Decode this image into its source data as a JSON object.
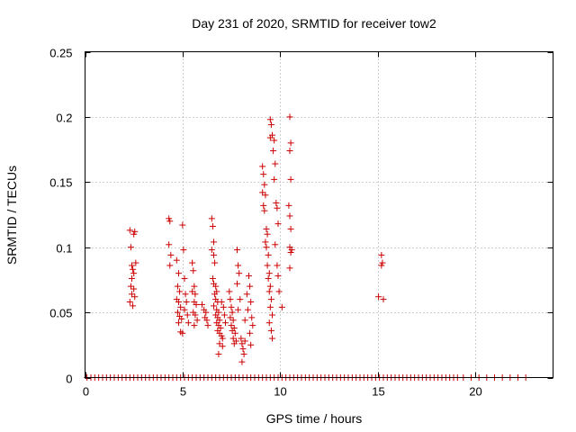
{
  "chart_data": {
    "type": "scatter",
    "title": "Day 231 of 2020, SRMTID for receiver tow2",
    "xlabel": "GPS time / hours",
    "ylabel": "SRMTID / TECUs",
    "xlim": [
      0,
      24
    ],
    "ylim": [
      0,
      0.25
    ],
    "xticks": [
      0,
      5,
      10,
      15,
      20
    ],
    "xtick_labels": [
      "0",
      "5",
      "10",
      "15",
      "20"
    ],
    "yticks": [
      0,
      0.05,
      0.1,
      0.15,
      0.2,
      0.25
    ],
    "ytick_labels": [
      "0",
      "0.05",
      "0.1",
      "0.15",
      "0.2",
      "0.25"
    ],
    "grid": true,
    "marker": "+",
    "color": "#cc0000",
    "series": [
      {
        "name": "SRMTID",
        "points": [
          [
            2.3,
            0.113
          ],
          [
            2.35,
            0.1
          ],
          [
            2.4,
            0.086
          ],
          [
            2.45,
            0.083
          ],
          [
            2.5,
            0.08
          ],
          [
            2.35,
            0.07
          ],
          [
            2.4,
            0.064
          ],
          [
            2.3,
            0.058
          ],
          [
            2.45,
            0.055
          ],
          [
            2.5,
            0.11
          ],
          [
            2.55,
            0.112
          ],
          [
            2.6,
            0.088
          ],
          [
            2.4,
            0.076
          ],
          [
            2.5,
            0.068
          ],
          [
            2.55,
            0.062
          ],
          [
            4.3,
            0.122
          ],
          [
            4.35,
            0.12
          ],
          [
            4.3,
            0.102
          ],
          [
            4.4,
            0.094
          ],
          [
            4.35,
            0.086
          ],
          [
            4.7,
            0.09
          ],
          [
            4.8,
            0.08
          ],
          [
            4.75,
            0.07
          ],
          [
            4.85,
            0.066
          ],
          [
            4.7,
            0.06
          ],
          [
            4.8,
            0.058
          ],
          [
            4.9,
            0.054
          ],
          [
            4.75,
            0.05
          ],
          [
            4.85,
            0.047
          ],
          [
            4.95,
            0.045
          ],
          [
            4.8,
            0.042
          ],
          [
            4.9,
            0.035
          ],
          [
            5.0,
            0.034
          ],
          [
            5.0,
            0.117
          ],
          [
            5.05,
            0.098
          ],
          [
            5.1,
            0.076
          ],
          [
            5.15,
            0.064
          ],
          [
            5.2,
            0.058
          ],
          [
            5.1,
            0.052
          ],
          [
            5.25,
            0.048
          ],
          [
            5.3,
            0.042
          ],
          [
            5.5,
            0.088
          ],
          [
            5.55,
            0.082
          ],
          [
            5.6,
            0.07
          ],
          [
            5.5,
            0.066
          ],
          [
            5.65,
            0.064
          ],
          [
            5.6,
            0.058
          ],
          [
            5.7,
            0.056
          ],
          [
            5.55,
            0.05
          ],
          [
            5.65,
            0.048
          ],
          [
            5.75,
            0.044
          ],
          [
            5.6,
            0.04
          ],
          [
            6.0,
            0.056
          ],
          [
            6.1,
            0.052
          ],
          [
            6.2,
            0.05
          ],
          [
            6.15,
            0.046
          ],
          [
            6.25,
            0.044
          ],
          [
            6.3,
            0.04
          ],
          [
            6.5,
            0.122
          ],
          [
            6.55,
            0.116
          ],
          [
            6.6,
            0.104
          ],
          [
            6.5,
            0.098
          ],
          [
            6.6,
            0.094
          ],
          [
            6.65,
            0.088
          ],
          [
            6.55,
            0.076
          ],
          [
            6.6,
            0.072
          ],
          [
            6.7,
            0.07
          ],
          [
            6.75,
            0.066
          ],
          [
            6.65,
            0.064
          ],
          [
            6.7,
            0.06
          ],
          [
            6.8,
            0.058
          ],
          [
            6.6,
            0.055
          ],
          [
            6.75,
            0.052
          ],
          [
            6.85,
            0.05
          ],
          [
            6.7,
            0.048
          ],
          [
            6.8,
            0.046
          ],
          [
            6.9,
            0.044
          ],
          [
            6.75,
            0.042
          ],
          [
            6.85,
            0.04
          ],
          [
            6.95,
            0.038
          ],
          [
            6.8,
            0.036
          ],
          [
            6.9,
            0.034
          ],
          [
            7.0,
            0.032
          ],
          [
            6.85,
            0.018
          ],
          [
            7.05,
            0.03
          ],
          [
            7.1,
            0.054
          ],
          [
            7.0,
            0.058
          ],
          [
            7.15,
            0.048
          ],
          [
            7.2,
            0.042
          ],
          [
            6.9,
            0.026
          ],
          [
            7.05,
            0.024
          ],
          [
            7.4,
            0.066
          ],
          [
            7.45,
            0.06
          ],
          [
            7.5,
            0.054
          ],
          [
            7.55,
            0.05
          ],
          [
            7.45,
            0.046
          ],
          [
            7.6,
            0.044
          ],
          [
            7.5,
            0.04
          ],
          [
            7.65,
            0.038
          ],
          [
            7.55,
            0.036
          ],
          [
            7.7,
            0.034
          ],
          [
            7.6,
            0.03
          ],
          [
            7.75,
            0.028
          ],
          [
            7.65,
            0.026
          ],
          [
            7.8,
            0.098
          ],
          [
            7.85,
            0.086
          ],
          [
            7.9,
            0.08
          ],
          [
            7.8,
            0.072
          ],
          [
            7.95,
            0.06
          ],
          [
            7.85,
            0.052
          ],
          [
            8.0,
            0.03
          ],
          [
            8.05,
            0.026
          ],
          [
            8.1,
            0.022
          ],
          [
            8.15,
            0.018
          ],
          [
            8.05,
            0.012
          ],
          [
            8.2,
            0.044
          ],
          [
            8.3,
            0.064
          ],
          [
            8.4,
            0.078
          ],
          [
            8.45,
            0.07
          ],
          [
            8.5,
            0.058
          ],
          [
            8.35,
            0.052
          ],
          [
            8.55,
            0.046
          ],
          [
            8.6,
            0.04
          ],
          [
            8.45,
            0.034
          ],
          [
            8.5,
            0.025
          ],
          [
            8.2,
            0.028
          ],
          [
            9.1,
            0.162
          ],
          [
            9.15,
            0.156
          ],
          [
            9.2,
            0.148
          ],
          [
            9.1,
            0.142
          ],
          [
            9.25,
            0.14
          ],
          [
            9.15,
            0.132
          ],
          [
            9.2,
            0.128
          ],
          [
            9.3,
            0.114
          ],
          [
            9.35,
            0.11
          ],
          [
            9.25,
            0.104
          ],
          [
            9.3,
            0.1
          ],
          [
            9.4,
            0.094
          ],
          [
            9.35,
            0.086
          ],
          [
            9.45,
            0.08
          ],
          [
            9.4,
            0.076
          ],
          [
            9.5,
            0.07
          ],
          [
            9.45,
            0.066
          ],
          [
            9.55,
            0.06
          ],
          [
            9.5,
            0.054
          ],
          [
            9.6,
            0.048
          ],
          [
            9.45,
            0.042
          ],
          [
            9.55,
            0.036
          ],
          [
            9.6,
            0.03
          ],
          [
            9.5,
            0.198
          ],
          [
            9.55,
            0.194
          ],
          [
            9.6,
            0.186
          ],
          [
            9.5,
            0.184
          ],
          [
            9.65,
            0.174
          ],
          [
            9.7,
            0.182
          ],
          [
            9.75,
            0.164
          ],
          [
            9.7,
            0.152
          ],
          [
            9.8,
            0.134
          ],
          [
            9.85,
            0.13
          ],
          [
            9.9,
            0.118
          ],
          [
            9.75,
            0.102
          ],
          [
            9.85,
            0.086
          ],
          [
            9.9,
            0.078
          ],
          [
            9.95,
            0.066
          ],
          [
            10.1,
            0.054
          ],
          [
            10.5,
            0.2
          ],
          [
            10.55,
            0.18
          ],
          [
            10.5,
            0.174
          ],
          [
            10.55,
            0.152
          ],
          [
            10.45,
            0.132
          ],
          [
            10.5,
            0.124
          ],
          [
            10.55,
            0.114
          ],
          [
            10.5,
            0.1
          ],
          [
            10.6,
            0.098
          ],
          [
            10.55,
            0.096
          ],
          [
            10.5,
            0.084
          ],
          [
            15.05,
            0.062
          ],
          [
            15.2,
            0.094
          ],
          [
            15.25,
            0.088
          ],
          [
            15.2,
            0.086
          ],
          [
            15.3,
            0.06
          ],
          [
            0.1,
            0
          ],
          [
            0.3,
            0
          ],
          [
            0.5,
            0
          ],
          [
            0.7,
            0
          ],
          [
            0.9,
            0
          ],
          [
            1.1,
            0
          ],
          [
            1.3,
            0
          ],
          [
            1.5,
            0
          ],
          [
            1.7,
            0
          ],
          [
            1.9,
            0
          ],
          [
            2.1,
            0
          ],
          [
            2.3,
            0
          ],
          [
            2.5,
            0
          ],
          [
            2.7,
            0
          ],
          [
            2.9,
            0
          ],
          [
            3.1,
            0
          ],
          [
            3.3,
            0
          ],
          [
            3.5,
            0
          ],
          [
            3.7,
            0
          ],
          [
            3.9,
            0
          ],
          [
            4.1,
            0
          ],
          [
            4.3,
            0
          ],
          [
            4.5,
            0
          ],
          [
            4.7,
            0
          ],
          [
            4.9,
            0
          ],
          [
            5.1,
            0
          ],
          [
            5.3,
            0
          ],
          [
            5.5,
            0
          ],
          [
            5.7,
            0
          ],
          [
            5.9,
            0
          ],
          [
            6.1,
            0
          ],
          [
            6.3,
            0
          ],
          [
            6.5,
            0
          ],
          [
            6.7,
            0
          ],
          [
            6.9,
            0
          ],
          [
            7.1,
            0
          ],
          [
            7.3,
            0
          ],
          [
            7.5,
            0
          ],
          [
            7.7,
            0
          ],
          [
            7.9,
            0
          ],
          [
            8.1,
            0
          ],
          [
            8.3,
            0
          ],
          [
            8.5,
            0
          ],
          [
            8.7,
            0
          ],
          [
            8.9,
            0
          ],
          [
            9.1,
            0
          ],
          [
            9.3,
            0
          ],
          [
            9.5,
            0
          ],
          [
            9.7,
            0
          ],
          [
            9.9,
            0
          ],
          [
            10.1,
            0
          ],
          [
            10.3,
            0
          ],
          [
            10.5,
            0
          ],
          [
            10.7,
            0
          ],
          [
            10.9,
            0
          ],
          [
            11.1,
            0
          ],
          [
            11.3,
            0
          ],
          [
            11.5,
            0
          ],
          [
            11.7,
            0
          ],
          [
            11.9,
            0
          ],
          [
            12.1,
            0
          ],
          [
            12.3,
            0
          ],
          [
            12.5,
            0
          ],
          [
            12.7,
            0
          ],
          [
            12.9,
            0
          ],
          [
            13.1,
            0
          ],
          [
            13.3,
            0
          ],
          [
            13.5,
            0
          ],
          [
            13.7,
            0
          ],
          [
            13.9,
            0
          ],
          [
            14.1,
            0
          ],
          [
            14.3,
            0
          ],
          [
            14.5,
            0
          ],
          [
            14.7,
            0
          ],
          [
            14.9,
            0
          ],
          [
            15.1,
            0
          ],
          [
            15.3,
            0
          ],
          [
            15.5,
            0
          ],
          [
            15.7,
            0
          ],
          [
            15.9,
            0
          ],
          [
            16.1,
            0
          ],
          [
            16.3,
            0
          ],
          [
            16.5,
            0
          ],
          [
            16.7,
            0
          ],
          [
            16.9,
            0
          ],
          [
            17.1,
            0
          ],
          [
            17.3,
            0
          ],
          [
            17.5,
            0
          ],
          [
            17.7,
            0
          ],
          [
            17.9,
            0
          ],
          [
            18.1,
            0
          ],
          [
            18.3,
            0
          ],
          [
            18.5,
            0
          ],
          [
            18.7,
            0
          ],
          [
            18.9,
            0
          ],
          [
            19.1,
            0
          ],
          [
            19.4,
            0
          ],
          [
            19.8,
            0
          ],
          [
            20.2,
            0
          ],
          [
            20.6,
            0
          ],
          [
            21.0,
            0
          ],
          [
            21.4,
            0
          ],
          [
            21.8,
            0
          ],
          [
            22.2,
            0
          ],
          [
            22.6,
            0
          ]
        ]
      }
    ]
  }
}
